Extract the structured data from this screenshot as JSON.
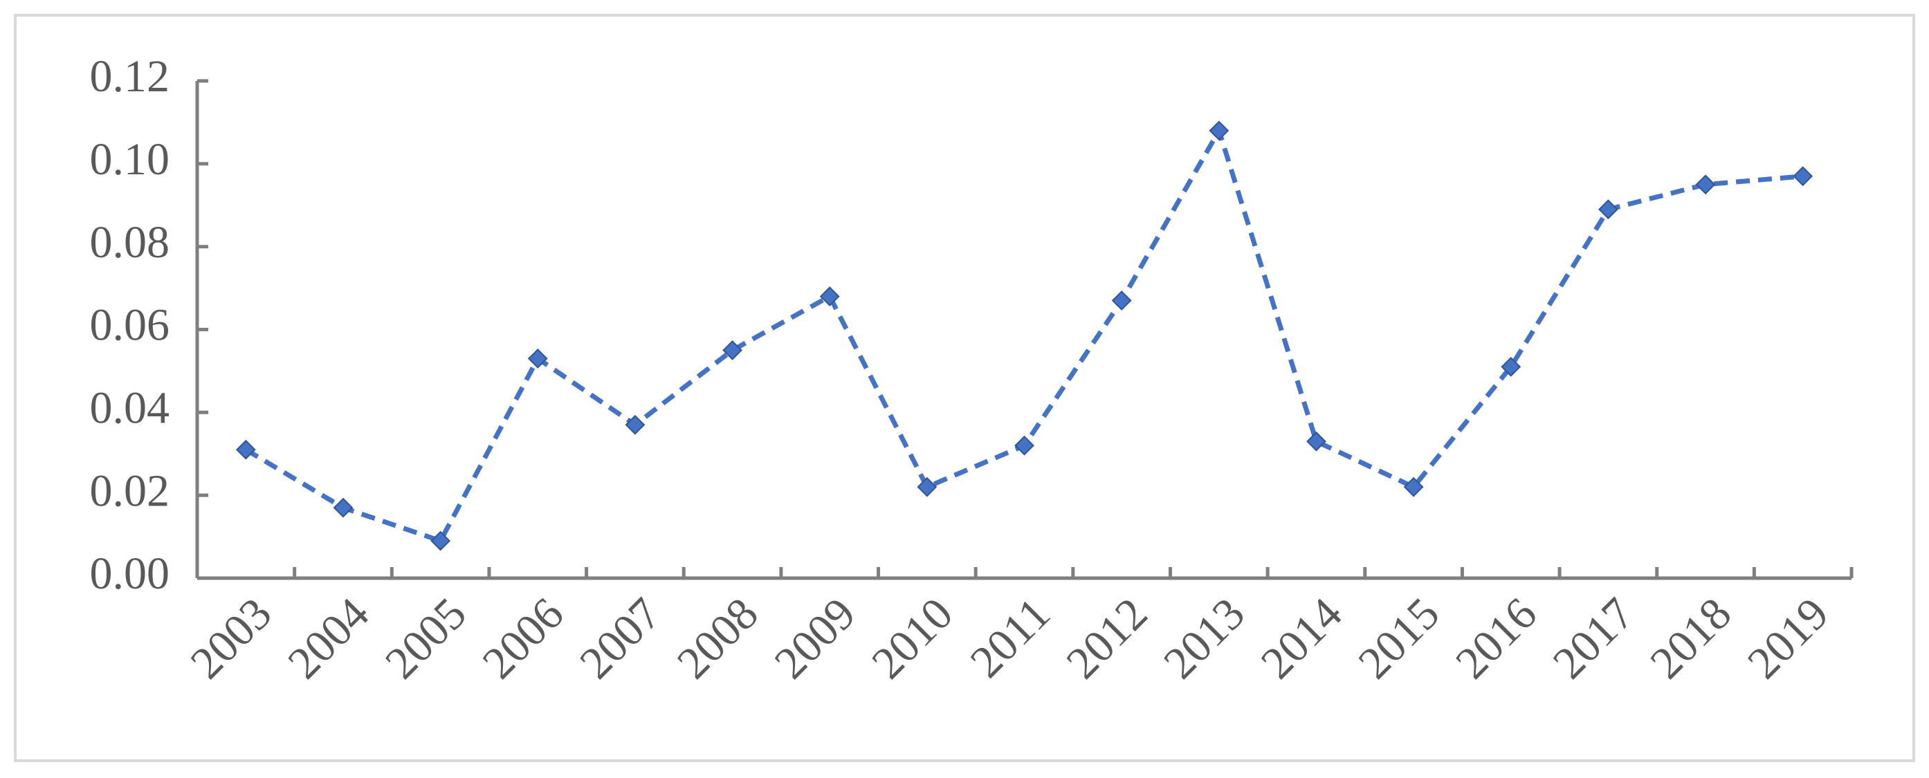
{
  "chart_data": {
    "type": "line",
    "categories": [
      "2003",
      "2004",
      "2005",
      "2006",
      "2007",
      "2008",
      "2009",
      "2010",
      "2011",
      "2012",
      "2013",
      "2014",
      "2015",
      "2016",
      "2017",
      "2018",
      "2019"
    ],
    "values": [
      0.031,
      0.017,
      0.009,
      0.053,
      0.037,
      0.055,
      0.068,
      0.022,
      0.032,
      0.067,
      0.108,
      0.033,
      0.022,
      0.051,
      0.089,
      0.095,
      0.097
    ],
    "color": "#4472c4",
    "ylim": [
      0,
      0.12
    ],
    "yticks": [
      {
        "value": 0,
        "label": "0.00"
      },
      0.02,
      0.04,
      0.06,
      0.08,
      {
        "value": 0.1,
        "label": "0.10"
      },
      0.12
    ],
    "grid": false
  }
}
